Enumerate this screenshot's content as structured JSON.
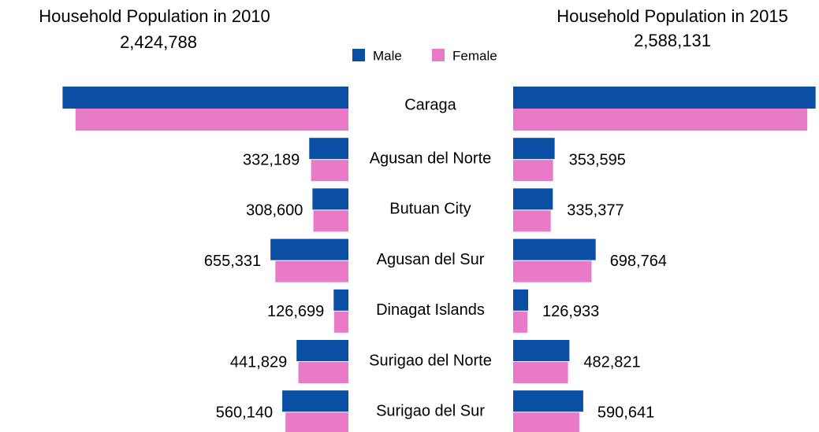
{
  "chart_data": {
    "type": "butterfly",
    "categories": [
      "Caraga",
      "Agusan del Norte",
      "Butuan City",
      "Agusan del Sur",
      "Dinagat Islands",
      "Surigao del Norte",
      "Surigao del Sur"
    ],
    "legend": [
      {
        "name": "Male",
        "color": "#0a4fa3"
      },
      {
        "name": "Female",
        "color": "#e87ac8"
      }
    ],
    "xlim": [
      0,
      1320000
    ],
    "panels": [
      {
        "title": "Household Population in 2010",
        "total": 2424788,
        "total_label": "2,424,788",
        "series": [
          {
            "values": [
              1240000,
              170000,
              156000,
              338000,
              64000,
              225000,
              287000
            ]
          },
          {
            "values": [
              1184000,
              162000,
              152000,
              317000,
              62000,
              217000,
              273000
            ]
          }
        ],
        "totals": [
          null,
          332189,
          308600,
          655331,
          126699,
          441829,
          560140
        ],
        "total_labels": [
          null,
          "332,189",
          "308,600",
          "655,331",
          "126,699",
          "441,829",
          "560,140"
        ]
      },
      {
        "title": "Household Population in 2015",
        "total": 2588131,
        "total_label": "2,588,131",
        "series": [
          {
            "values": [
              1312000,
              180000,
              172000,
              358000,
              65000,
              244000,
              304000
            ]
          },
          {
            "values": [
              1276000,
              173000,
              163000,
              340000,
              62000,
              238000,
              287000
            ]
          }
        ],
        "totals": [
          null,
          353595,
          335377,
          698764,
          126933,
          482821,
          590641
        ],
        "total_labels": [
          null,
          "353,595",
          "335,377",
          "698,764",
          "126,933",
          "482,821",
          "590,641"
        ]
      }
    ]
  }
}
